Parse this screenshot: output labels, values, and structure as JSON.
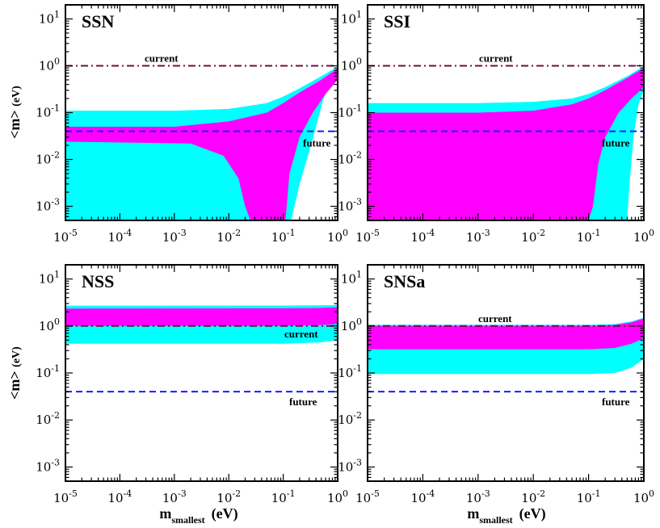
{
  "chart_data": [
    {
      "type": "area",
      "title": "SSN",
      "xscale": "log",
      "yscale": "log",
      "xlim": [
        1e-05,
        1
      ],
      "ylim": [
        0.0005,
        20
      ],
      "x_ticks": [
        "-5",
        "-4",
        "-3",
        "-2",
        "-1",
        "0"
      ],
      "y_ticks": [
        "-3",
        "-2",
        "-1",
        "0",
        "1"
      ],
      "reference_lines": [
        {
          "name": "current",
          "value": 1.0,
          "style": "dash-dot",
          "color": "#6b1040"
        },
        {
          "name": "future",
          "value": 0.04,
          "style": "dashed",
          "color": "#1a1aff"
        }
      ],
      "series": [
        {
          "color": "#00ffff",
          "upper": [
            [
              1e-05,
              0.11
            ],
            [
              0.001,
              0.11
            ],
            [
              0.01,
              0.12
            ],
            [
              0.05,
              0.16
            ],
            [
              0.1,
              0.22
            ],
            [
              0.2,
              0.33
            ],
            [
              0.5,
              0.6
            ],
            [
              1,
              0.95
            ]
          ],
          "lower": [
            [
              1e-05,
              0.0005
            ],
            [
              0.1,
              0.0005
            ],
            [
              0.14,
              0.0005
            ],
            [
              0.2,
              0.003
            ],
            [
              0.3,
              0.015
            ],
            [
              0.4,
              0.05
            ],
            [
              0.55,
              0.2
            ],
            [
              0.75,
              0.4
            ],
            [
              1,
              0.6
            ]
          ]
        },
        {
          "color": "#ff00ff",
          "upper": [
            [
              1e-05,
              0.05
            ],
            [
              0.001,
              0.05
            ],
            [
              0.01,
              0.065
            ],
            [
              0.05,
              0.1
            ],
            [
              0.1,
              0.16
            ],
            [
              0.2,
              0.27
            ],
            [
              0.5,
              0.5
            ],
            [
              1,
              0.88
            ]
          ],
          "lower": [
            [
              1e-05,
              0.024
            ],
            [
              0.002,
              0.022
            ],
            [
              0.008,
              0.012
            ],
            [
              0.015,
              0.004
            ],
            [
              0.02,
              0.001
            ],
            [
              0.025,
              0.0005
            ],
            [
              0.11,
              0.0005
            ],
            [
              0.13,
              0.005
            ],
            [
              0.2,
              0.03
            ],
            [
              0.35,
              0.1
            ],
            [
              0.6,
              0.25
            ],
            [
              1,
              0.5
            ]
          ]
        }
      ]
    },
    {
      "type": "area",
      "title": "SSI",
      "xscale": "log",
      "yscale": "log",
      "xlim": [
        1e-05,
        1
      ],
      "ylim": [
        0.0005,
        20
      ],
      "x_ticks": [
        "-5",
        "-4",
        "-3",
        "-2",
        "-1",
        "0"
      ],
      "y_ticks": [
        "-3",
        "-2",
        "-1",
        "0",
        "1"
      ],
      "reference_lines": [
        {
          "name": "current",
          "value": 1.0,
          "style": "dash-dot",
          "color": "#6b1040"
        },
        {
          "name": "future",
          "value": 0.04,
          "style": "dashed",
          "color": "#1a1aff"
        }
      ],
      "series": [
        {
          "color": "#00ffff",
          "upper": [
            [
              1e-05,
              0.16
            ],
            [
              0.001,
              0.16
            ],
            [
              0.01,
              0.17
            ],
            [
              0.05,
              0.2
            ],
            [
              0.1,
              0.25
            ],
            [
              0.2,
              0.35
            ],
            [
              0.5,
              0.6
            ],
            [
              1,
              0.98
            ]
          ],
          "lower": [
            [
              1e-05,
              0.0005
            ],
            [
              0.1,
              0.0005
            ],
            [
              0.5,
              0.0005
            ],
            [
              0.55,
              0.003
            ],
            [
              0.65,
              0.03
            ],
            [
              0.8,
              0.15
            ],
            [
              1,
              0.3
            ]
          ]
        },
        {
          "color": "#ff00ff",
          "upper": [
            [
              1e-05,
              0.1
            ],
            [
              0.001,
              0.1
            ],
            [
              0.01,
              0.11
            ],
            [
              0.05,
              0.15
            ],
            [
              0.1,
              0.2
            ],
            [
              0.2,
              0.3
            ],
            [
              0.5,
              0.55
            ],
            [
              1,
              0.9
            ]
          ],
          "lower": [
            [
              1e-05,
              0.0005
            ],
            [
              0.1,
              0.0005
            ],
            [
              0.12,
              0.001
            ],
            [
              0.15,
              0.008
            ],
            [
              0.2,
              0.03
            ],
            [
              0.35,
              0.1
            ],
            [
              0.6,
              0.2
            ],
            [
              1,
              0.35
            ]
          ]
        }
      ]
    },
    {
      "type": "area",
      "title": "NSS",
      "xscale": "log",
      "yscale": "log",
      "xlim": [
        1e-05,
        1
      ],
      "ylim": [
        0.0005,
        20
      ],
      "x_ticks": [
        "-5",
        "-4",
        "-3",
        "-2",
        "-1",
        "0"
      ],
      "y_ticks": [
        "-3",
        "-2",
        "-1",
        "0",
        "1"
      ],
      "reference_lines": [
        {
          "name": "current",
          "value": 1.0,
          "style": "dash-dot",
          "color": "#6b1040"
        },
        {
          "name": "future",
          "value": 0.04,
          "style": "dashed",
          "color": "#1a1aff"
        }
      ],
      "series": [
        {
          "color": "#00ffff",
          "upper": [
            [
              1e-05,
              2.7
            ],
            [
              0.1,
              2.72
            ],
            [
              0.5,
              2.76
            ],
            [
              1,
              2.8
            ]
          ],
          "lower": [
            [
              1e-05,
              0.42
            ],
            [
              0.1,
              0.42
            ],
            [
              0.5,
              0.45
            ],
            [
              1,
              0.5
            ]
          ]
        },
        {
          "color": "#ff00ff",
          "upper": [
            [
              1e-05,
              2.35
            ],
            [
              0.1,
              2.37
            ],
            [
              0.5,
              2.42
            ],
            [
              1,
              2.5
            ]
          ],
          "lower": [
            [
              1e-05,
              1.0
            ],
            [
              0.1,
              1.0
            ],
            [
              0.5,
              1.05
            ],
            [
              1,
              1.1
            ]
          ]
        }
      ]
    },
    {
      "type": "area",
      "title": "SNSa",
      "xscale": "log",
      "yscale": "log",
      "xlim": [
        1e-05,
        1
      ],
      "ylim": [
        0.0005,
        20
      ],
      "x_ticks": [
        "-5",
        "-4",
        "-3",
        "-2",
        "-1",
        "0"
      ],
      "y_ticks": [
        "-3",
        "-2",
        "-1",
        "0",
        "1"
      ],
      "reference_lines": [
        {
          "name": "current",
          "value": 1.0,
          "style": "dash-dot",
          "color": "#6b1040"
        },
        {
          "name": "future",
          "value": 0.04,
          "style": "dashed",
          "color": "#1a1aff"
        }
      ],
      "series": [
        {
          "color": "#00ffff",
          "upper": [
            [
              1e-05,
              1.06
            ],
            [
              0.1,
              1.06
            ],
            [
              0.3,
              1.1
            ],
            [
              0.6,
              1.25
            ],
            [
              1,
              1.5
            ]
          ],
          "lower": [
            [
              1e-05,
              0.095
            ],
            [
              0.1,
              0.095
            ],
            [
              0.3,
              0.1
            ],
            [
              0.6,
              0.13
            ],
            [
              1,
              0.2
            ]
          ]
        },
        {
          "color": "#ff00ff",
          "upper": [
            [
              1e-05,
              1.0
            ],
            [
              0.1,
              1.0
            ],
            [
              0.3,
              1.05
            ],
            [
              0.6,
              1.2
            ],
            [
              1,
              1.45
            ]
          ],
          "lower": [
            [
              1e-05,
              0.32
            ],
            [
              0.1,
              0.32
            ],
            [
              0.3,
              0.34
            ],
            [
              0.6,
              0.42
            ],
            [
              1,
              0.55
            ]
          ]
        }
      ]
    }
  ],
  "axis_labels": {
    "y_main": "<m>",
    "y_unit": "(eV)",
    "x_main": "m",
    "x_sub": "smallest",
    "x_unit": "(eV)"
  },
  "tick_base": "10"
}
